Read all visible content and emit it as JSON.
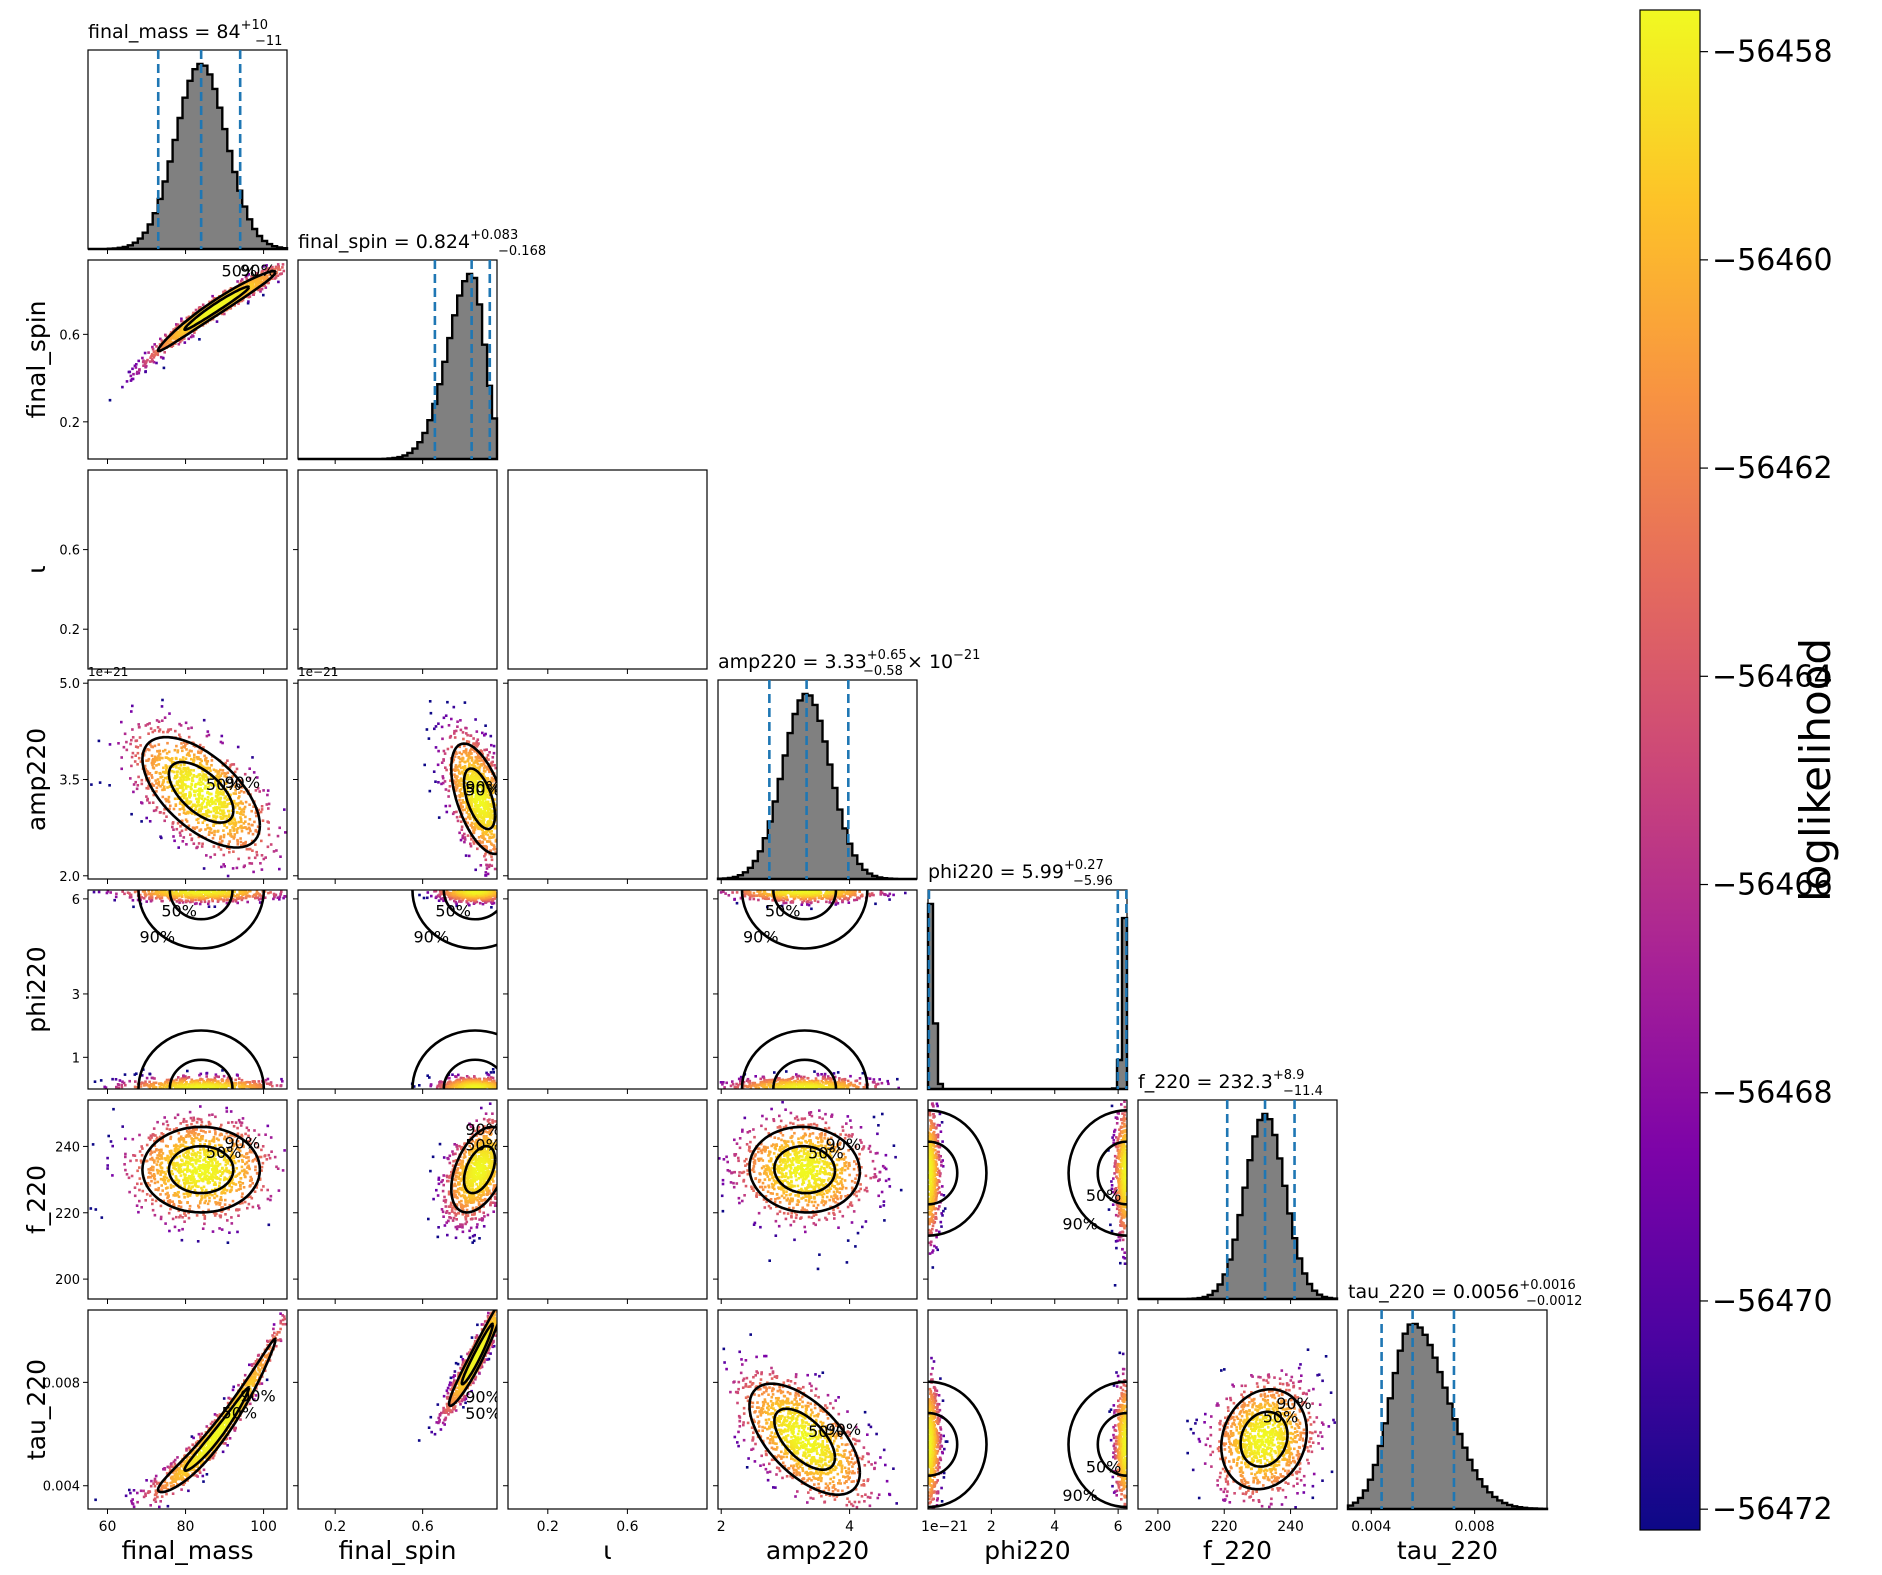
{
  "chart_data": {
    "type": "scatter",
    "kind": "corner",
    "colormap": "plasma",
    "colorbar": {
      "label": "loglikelihood",
      "range": [
        -56472.2,
        -56457.6
      ],
      "ticks": [
        "−56458",
        "−56460",
        "−56462",
        "−56464",
        "−56466",
        "−56468",
        "−56470",
        "−56472"
      ]
    },
    "colors": {
      "hist_fill": "#808080",
      "hist_edge": "#000000",
      "quantile_line": "#1f77b4",
      "contour": "#000000"
    },
    "params": [
      {
        "name": "final_mass",
        "xlabel": "final_mass",
        "ylabel": "",
        "range": [
          55,
          106
        ],
        "ticks": [
          60,
          80,
          100
        ],
        "tick_labels": [
          "60",
          "80",
          "100"
        ],
        "offset": "",
        "median": 84,
        "lo": 73,
        "hi": 94,
        "title_main": "final_mass = 84",
        "title_sup": "+10",
        "title_sub": "−11",
        "title_suffix": "",
        "hist": "normal",
        "sd": 6.5,
        "skew": 0
      },
      {
        "name": "final_spin",
        "xlabel": "final_spin",
        "ylabel": "final_spin",
        "range": [
          0.03,
          0.94
        ],
        "ticks": [
          0.2,
          0.6
        ],
        "tick_labels": [
          "0.2",
          "0.6"
        ],
        "offset": "",
        "median": 0.824,
        "lo": 0.656,
        "hi": 0.907,
        "title_main": "final_spin = 0.824",
        "title_sup": "+0.083",
        "title_sub": "−0.168",
        "title_suffix": "",
        "hist": "normal",
        "sd": 0.06,
        "skew": -1
      },
      {
        "name": "iota",
        "xlabel": "ι",
        "ylabel": "ι",
        "range": [
          0.0,
          1.0
        ],
        "ticks": [
          0.2,
          0.6
        ],
        "tick_labels": [
          "0.2",
          "0.6"
        ],
        "offset": "",
        "hist": "none"
      },
      {
        "name": "amp220",
        "xlabel": "amp220",
        "ylabel": "amp220",
        "range": [
          1.95,
          5.05
        ],
        "ticks": [
          2.0,
          3.5,
          5.0
        ],
        "tick_labels": [
          "2.0",
          "3.5",
          "5.0"
        ],
        "xticks": [
          2,
          4
        ],
        "xtick_labels": [
          "2",
          "4"
        ],
        "offset": "1e−21",
        "median": 3.33,
        "lo": 2.75,
        "hi": 3.98,
        "title_main": "amp220 = 3.33",
        "title_sup": "+0.65",
        "title_sub": "−0.58",
        "title_suffix": "× 10",
        "title_suffix_sup": "−21",
        "hist": "normal",
        "sd": 0.37,
        "skew": 0
      },
      {
        "name": "phi220",
        "xlabel": "phi220",
        "ylabel": "phi220",
        "range": [
          0.0,
          6.28
        ],
        "ticks": [
          1,
          3,
          6
        ],
        "tick_labels": [
          "1",
          "3",
          "6"
        ],
        "xticks": [
          2,
          4,
          6
        ],
        "xtick_labels": [
          "2",
          "4",
          "6"
        ],
        "offset": "",
        "median": 5.99,
        "lo": 0.03,
        "hi": 6.26,
        "title_main": "phi220 = 5.99",
        "title_sup": "+0.27",
        "title_sub": "−5.96",
        "title_suffix": "",
        "hist": "bimodal"
      },
      {
        "name": "f_220",
        "xlabel": "f_220",
        "ylabel": "f_220",
        "range": [
          194,
          254
        ],
        "ticks": [
          200,
          220,
          240
        ],
        "tick_labels": [
          "200",
          "220",
          "240"
        ],
        "offset": "",
        "median": 232.3,
        "lo": 220.9,
        "hi": 241.2,
        "title_main": "f_220 = 232.3",
        "title_sup": "+8.9",
        "title_sub": "−11.4",
        "title_suffix": "",
        "hist": "normal",
        "sd": 6.0,
        "skew": 0
      },
      {
        "name": "tau_220",
        "xlabel": "tau_220",
        "ylabel": "tau_220",
        "range": [
          0.0031,
          0.0108
        ],
        "ticks": [
          0.004,
          0.008
        ],
        "tick_labels": [
          "0.004",
          "0.008"
        ],
        "offset": "",
        "median": 0.0056,
        "lo": 0.0044,
        "hi": 0.0072,
        "title_main": "tau_220 = 0.0056",
        "title_sup": "+0.0016",
        "title_sub": "−0.0012",
        "title_suffix": "",
        "hist": "normal",
        "sd": 0.00085,
        "skew": 1
      }
    ],
    "contour_labels": [
      "50%",
      "90%"
    ],
    "pairs": [
      {
        "x": "final_mass",
        "y": "final_spin",
        "cx": 88,
        "cy": 0.81,
        "sx": 7,
        "sy": 0.07,
        "rho": 0.95,
        "curve": "up"
      },
      {
        "x": "final_mass",
        "y": "amp220",
        "cx": 84,
        "cy": 3.3,
        "sx": 7,
        "sy": 0.4,
        "rho": -0.6
      },
      {
        "x": "final_spin",
        "y": "amp220",
        "cx": 0.86,
        "cy": 3.2,
        "sx": 0.06,
        "sy": 0.4,
        "rho": -0.55
      },
      {
        "x": "final_mass",
        "y": "phi220",
        "cx": 84,
        "cy": "wrap",
        "sx": 7
      },
      {
        "x": "final_spin",
        "y": "phi220",
        "cx": 0.84,
        "cy": "wrap",
        "sx": 0.06
      },
      {
        "x": "amp220",
        "y": "phi220",
        "cx": 3.3,
        "cy": "wrap",
        "sx": 0.4
      },
      {
        "x": "final_mass",
        "y": "f_220",
        "cx": 84,
        "cy": 233,
        "sx": 7,
        "sy": 6,
        "rho": 0.0
      },
      {
        "x": "final_spin",
        "y": "f_220",
        "cx": 0.86,
        "cy": 233,
        "sx": 0.06,
        "sy": 6,
        "rho": 0.45
      },
      {
        "x": "amp220",
        "y": "f_220",
        "cx": 3.3,
        "cy": 233,
        "sx": 0.4,
        "sy": 6,
        "rho": -0.05
      },
      {
        "x": "phi220",
        "y": "f_220",
        "cx": "wrap",
        "cy": 232,
        "sy": 7
      },
      {
        "x": "f_220",
        "y": "tau_220",
        "cx": 232,
        "cy": 0.0058,
        "sx": 6,
        "sy": 0.0009,
        "rho": 0.15
      },
      {
        "x": "final_mass",
        "y": "tau_220",
        "cx": 88,
        "cy": 0.0058,
        "sx": 7,
        "sy": 0.001,
        "rho": 0.97,
        "curve": "up"
      },
      {
        "x": "final_spin",
        "y": "tau_220",
        "cx": 0.85,
        "cy": 0.0058,
        "sx": 0.06,
        "sy": 0.001,
        "rho": 0.95,
        "curve": "up"
      },
      {
        "x": "amp220",
        "y": "tau_220",
        "cx": 3.3,
        "cy": 0.0058,
        "sx": 0.4,
        "sy": 0.001,
        "rho": -0.6
      },
      {
        "x": "phi220",
        "y": "tau_220",
        "cx": "wrap",
        "cy": 0.0056,
        "sy": 0.0009
      }
    ]
  }
}
